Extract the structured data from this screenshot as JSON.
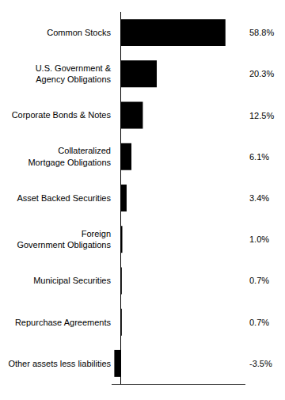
{
  "chart_data": {
    "type": "bar",
    "orientation": "horizontal",
    "categories": [
      "Common Stocks",
      "U.S. Government &\nAgency Obligations",
      "Corporate Bonds & Notes",
      "Collateralized\nMortgage Obligations",
      "Asset Backed Securities",
      "Foreign\nGovernment Obligations",
      "Municipal Securities",
      "Repurchase Agreements",
      "Other assets less liabilities"
    ],
    "values": [
      58.8,
      20.3,
      12.5,
      6.1,
      3.4,
      1.0,
      0.7,
      0.7,
      -3.5
    ],
    "value_labels": [
      "58.8%",
      "20.3%",
      "12.5%",
      "6.1%",
      "3.4%",
      "1.0%",
      "0.7%",
      "0.7%",
      "-3.5%"
    ],
    "data_labels": true,
    "color": "#000000",
    "xlim": [
      -5,
      70
    ],
    "tick_labels": "y",
    "grid": false
  }
}
